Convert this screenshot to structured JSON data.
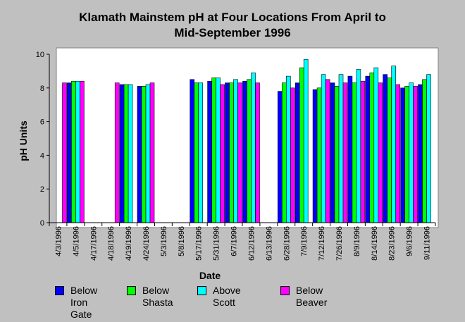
{
  "chart_data": {
    "type": "bar",
    "title": "Klamath Mainstem pH at Four Locations From April to Mid-September 1996",
    "title_lines": [
      "Klamath Mainstem pH at Four Locations From April to",
      "Mid-September 1996"
    ],
    "xlabel": "Date",
    "ylabel": "pH Units",
    "ylim": [
      0,
      10
    ],
    "yticks": [
      0,
      2,
      4,
      6,
      8,
      10
    ],
    "grid": false,
    "legend_position": "bottom",
    "categories": [
      "4/3/1996",
      "4/5/1996",
      "4/17/1996",
      "4/18/1996",
      "4/19/1996",
      "4/24/1996",
      "5/3/1996",
      "5/8/1996",
      "5/17/1996",
      "5/31/1996",
      "6/7/1996",
      "6/12/1996",
      "6/13/1996",
      "6/28/1996",
      "7/9/1996",
      "7/12/1996",
      "7/26/1996",
      "8/9/1996",
      "8/14/1996",
      "8/23/1996",
      "9/6/1996",
      "9/11/1996"
    ],
    "series": [
      {
        "name": "Below Iron\nGate",
        "color": "#0000ff",
        "values": [
          null,
          8.3,
          null,
          null,
          8.2,
          8.1,
          null,
          null,
          8.5,
          8.4,
          8.3,
          8.4,
          null,
          7.8,
          8.3,
          7.9,
          8.3,
          8.7,
          8.7,
          8.8,
          8.0,
          8.2
        ]
      },
      {
        "name": "Below Shasta",
        "color": "#00ff00",
        "values": [
          null,
          8.4,
          null,
          null,
          8.2,
          8.1,
          null,
          null,
          8.3,
          8.6,
          8.3,
          8.5,
          null,
          8.3,
          9.2,
          8.0,
          8.1,
          8.3,
          8.9,
          8.6,
          8.1,
          8.5
        ]
      },
      {
        "name": "Above Scott",
        "color": "#00ffff",
        "values": [
          null,
          8.4,
          null,
          null,
          8.2,
          8.2,
          null,
          null,
          8.3,
          8.6,
          8.5,
          8.9,
          null,
          8.7,
          9.7,
          8.8,
          8.8,
          9.1,
          9.2,
          9.3,
          8.3,
          8.8
        ]
      },
      {
        "name": "Below Beaver",
        "color": "#ff00ff",
        "values": [
          8.3,
          8.4,
          null,
          8.3,
          null,
          8.3,
          null,
          null,
          null,
          8.2,
          8.3,
          8.3,
          null,
          8.0,
          null,
          8.5,
          8.3,
          8.4,
          8.3,
          8.2,
          8.1,
          null
        ]
      }
    ]
  }
}
